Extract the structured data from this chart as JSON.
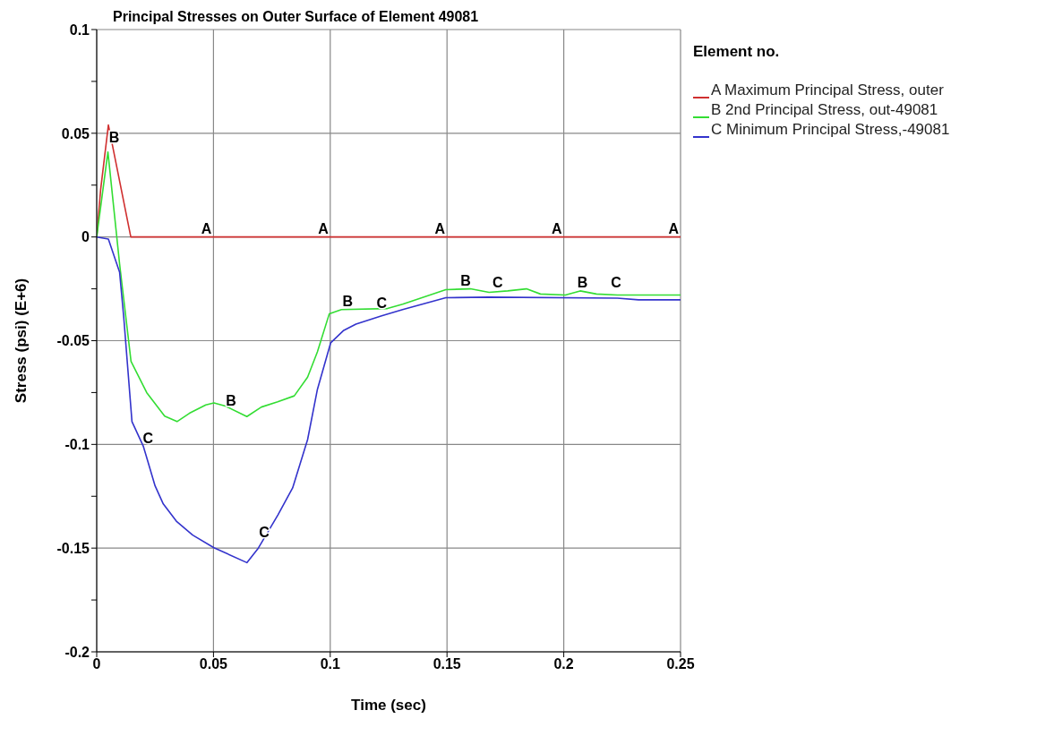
{
  "chart_data": {
    "type": "line",
    "title": "Principal Stresses on Outer Surface of Element 49081",
    "xlabel": "Time (sec)",
    "ylabel": "Stress (psi) (E+6)",
    "legend_title": "Element no.",
    "legend": "top right",
    "grid": true,
    "line_style": "solid",
    "marker": "none",
    "xlim": [
      0,
      0.25
    ],
    "xticks": [
      0,
      0.05,
      0.1,
      0.15,
      0.2,
      0.25
    ],
    "ylim": [
      -0.2,
      0.1
    ],
    "yticks": [
      -0.2,
      {
        "value": -0.175,
        "label": null
      },
      -0.15,
      {
        "value": -0.125,
        "label": null
      },
      -0.1,
      {
        "value": -0.075,
        "label": null
      },
      -0.05,
      {
        "value": -0.025,
        "label": null
      },
      0,
      {
        "value": 0.025,
        "label": null
      },
      0.05,
      {
        "value": 0.075,
        "label": null
      },
      0.1
    ],
    "series": [
      {
        "name": "A Maximum Principal Stress, outer",
        "color": "#d03030",
        "x": [
          0,
          0.0017,
          0.005,
          0.0146,
          0.25
        ],
        "values": [
          0,
          0.023,
          0.054,
          0,
          0
        ]
      },
      {
        "name": "B 2nd Principal Stress, out-49081",
        "color": "#33dd33",
        "x": [
          0,
          0.0048,
          0.0098,
          0.0147,
          0.0214,
          0.0291,
          0.0344,
          0.0397,
          0.0467,
          0.0502,
          0.0551,
          0.0643,
          0.0705,
          0.0775,
          0.0846,
          0.0903,
          0.0945,
          0.0996,
          0.1048,
          0.1245,
          0.131,
          0.1495,
          0.16,
          0.168,
          0.176,
          0.184,
          0.19,
          0.2007,
          0.207,
          0.214,
          0.223,
          0.25
        ],
        "values": [
          0,
          0.041,
          -0.013,
          -0.06,
          -0.075,
          -0.0864,
          -0.089,
          -0.085,
          -0.081,
          -0.08,
          -0.0815,
          -0.0866,
          -0.082,
          -0.0795,
          -0.0766,
          -0.0676,
          -0.0554,
          -0.037,
          -0.035,
          -0.0345,
          -0.0324,
          -0.0254,
          -0.025,
          -0.0267,
          -0.026,
          -0.025,
          -0.0275,
          -0.028,
          -0.026,
          -0.0275,
          -0.028,
          -0.028
        ]
      },
      {
        "name": "C Minimum Principal Stress,-49081",
        "color": "#3333cc",
        "x": [
          0,
          0.005,
          0.0098,
          0.0116,
          0.0151,
          0.02,
          0.025,
          0.0285,
          0.0341,
          0.0411,
          0.0502,
          0.0643,
          0.0692,
          0.0776,
          0.0839,
          0.0903,
          0.0945,
          0.1002,
          0.1058,
          0.111,
          0.122,
          0.131,
          0.1495,
          0.168,
          0.223,
          0.232,
          0.25
        ],
        "values": [
          0,
          -0.001,
          -0.017,
          -0.039,
          -0.089,
          -0.101,
          -0.12,
          -0.1287,
          -0.137,
          -0.1437,
          -0.1498,
          -0.157,
          -0.15,
          -0.134,
          -0.121,
          -0.0977,
          -0.0735,
          -0.051,
          -0.045,
          -0.042,
          -0.038,
          -0.035,
          -0.0293,
          -0.029,
          -0.0295,
          -0.0303,
          -0.0303
        ]
      }
    ],
    "annotations": [
      {
        "text": "A",
        "x": 0.047,
        "y": 0
      },
      {
        "text": "A",
        "x": 0.097,
        "y": 0
      },
      {
        "text": "A",
        "x": 0.147,
        "y": 0
      },
      {
        "text": "A",
        "x": 0.197,
        "y": 0
      },
      {
        "text": "A",
        "x": 0.247,
        "y": 0
      },
      {
        "text": "B",
        "x": 0.0075,
        "y": 0.044
      },
      {
        "text": "B",
        "x": 0.0575,
        "y": -0.083
      },
      {
        "text": "B",
        "x": 0.1075,
        "y": -0.035
      },
      {
        "text": "B",
        "x": 0.158,
        "y": -0.025
      },
      {
        "text": "B",
        "x": 0.208,
        "y": -0.026
      },
      {
        "text": "C",
        "x": 0.022,
        "y": -0.101
      },
      {
        "text": "C",
        "x": 0.0717,
        "y": -0.1466
      },
      {
        "text": "C",
        "x": 0.122,
        "y": -0.036
      },
      {
        "text": "C",
        "x": 0.1717,
        "y": -0.026
      },
      {
        "text": "C",
        "x": 0.2224,
        "y": -0.026
      }
    ]
  }
}
